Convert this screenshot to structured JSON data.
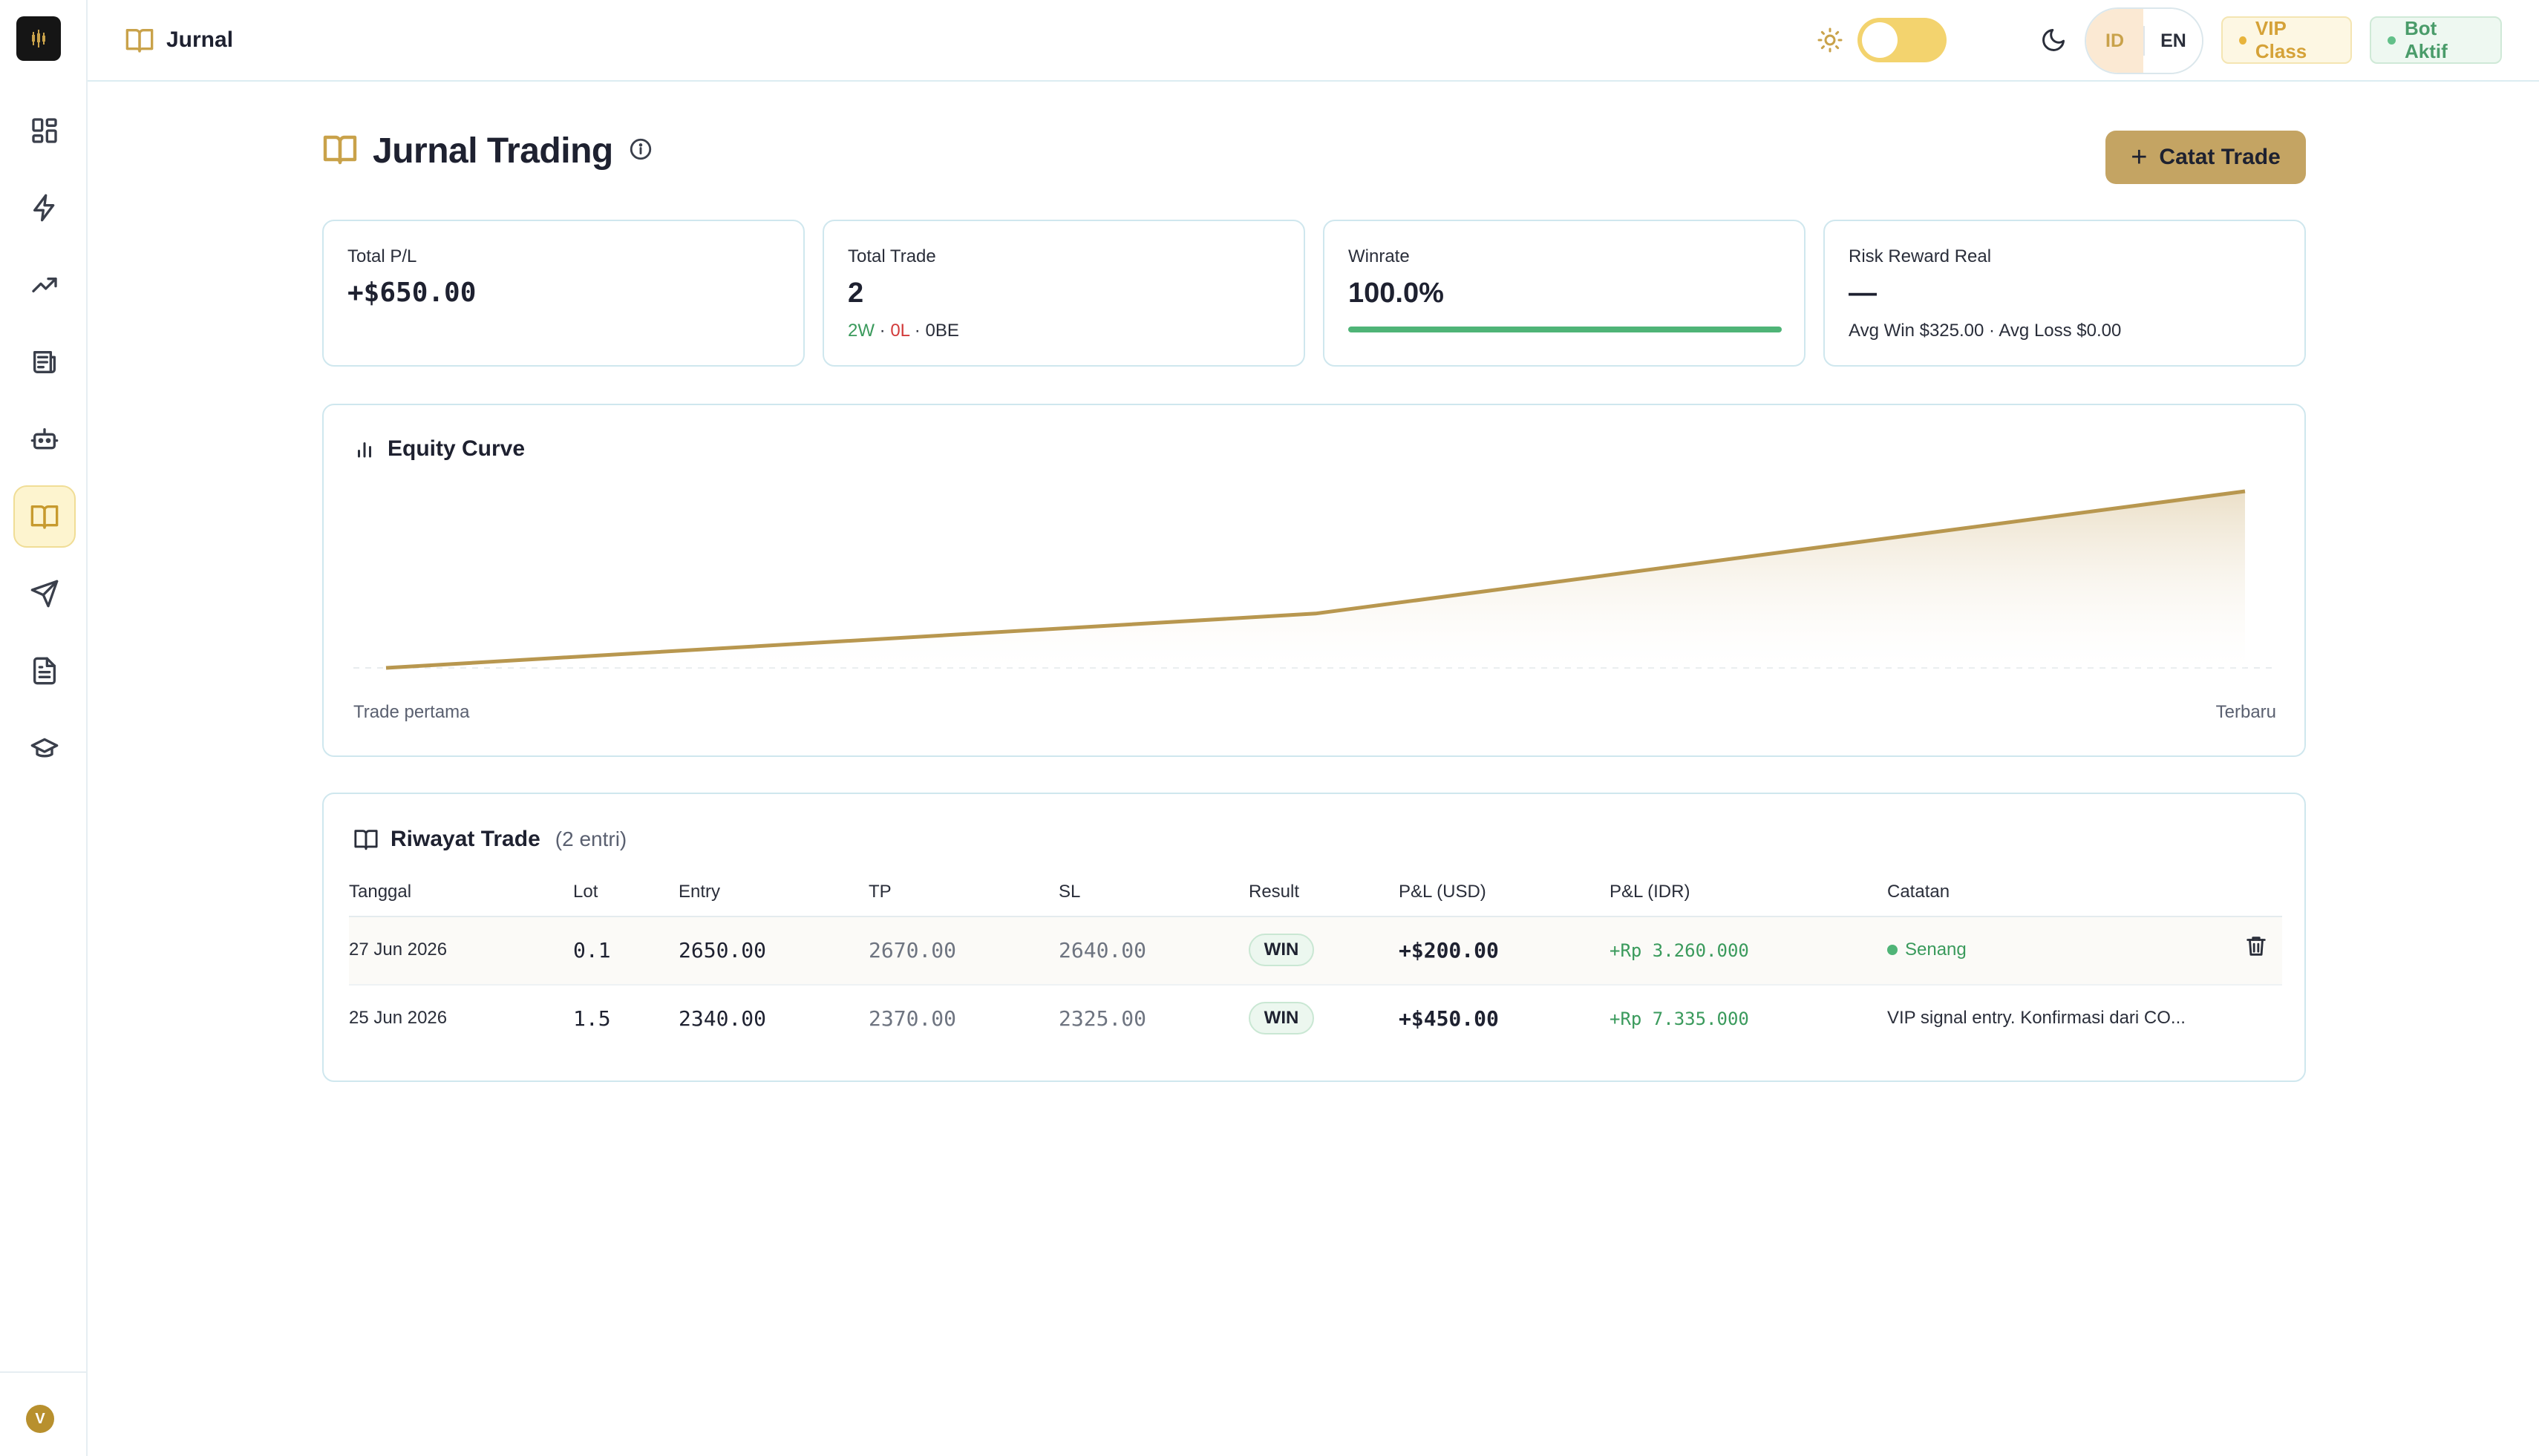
{
  "topbar": {
    "page_icon": "book-open-icon",
    "page_name": "Jurnal",
    "lang_options": [
      "ID",
      "EN"
    ],
    "lang_selected": "ID",
    "vip_label": "VIP Class",
    "bot_label": "Bot Aktif"
  },
  "sidebar": {
    "logo": "brand-logo",
    "items": [
      {
        "icon": "dashboard-grid-icon"
      },
      {
        "icon": "lightning-icon"
      },
      {
        "icon": "trending-up-icon"
      },
      {
        "icon": "newspaper-icon"
      },
      {
        "icon": "bot-icon"
      },
      {
        "icon": "book-open-icon",
        "active": true
      },
      {
        "icon": "send-icon"
      },
      {
        "icon": "document-icon"
      },
      {
        "icon": "graduation-cap-icon"
      }
    ],
    "avatar_initial": "V"
  },
  "page": {
    "title": "Jurnal Trading",
    "add_button": "Catat Trade"
  },
  "stats": {
    "total_pl": {
      "label": "Total P/L",
      "value": "+$650.00"
    },
    "total_trade": {
      "label": "Total Trade",
      "value": "2",
      "wins": "2W",
      "losses": "0L",
      "be": "0BE",
      "sep": " · "
    },
    "winrate": {
      "label": "Winrate",
      "value": "100.0%",
      "progress": 1.0
    },
    "risk_reward": {
      "label": "Risk Reward Real",
      "value": "—",
      "sub": "Avg Win $325.00 · Avg Loss $0.00"
    }
  },
  "equity": {
    "title": "Equity Curve",
    "x_start_label": "Trade pertama",
    "x_end_label": "Terbaru"
  },
  "chart_data": {
    "type": "area",
    "title": "Equity Curve",
    "x": [
      "Trade pertama",
      "",
      "Terbaru"
    ],
    "values": [
      0,
      200,
      650
    ],
    "color": "#b8974f"
  },
  "history": {
    "title": "Riwayat Trade",
    "count": "(2 entri)",
    "columns": [
      "Tanggal",
      "Lot",
      "Entry",
      "TP",
      "SL",
      "Result",
      "P&L (USD)",
      "P&L (IDR)",
      "Catatan"
    ],
    "rows": [
      {
        "date": "27 Jun 2026",
        "lot": "0.1",
        "entry": "2650.00",
        "tp": "2670.00",
        "sl": "2640.00",
        "result": "WIN",
        "pl_usd": "+$200.00",
        "pl_idr": "+Rp 3.260.000",
        "note": "Senang"
      },
      {
        "date": "25 Jun 2026",
        "lot": "1.5",
        "entry": "2340.00",
        "tp": "2370.00",
        "sl": "2325.00",
        "result": "WIN",
        "pl_usd": "+$450.00",
        "pl_idr": "+Rp 7.335.000",
        "note": "VIP signal entry. Konfirmasi dari CO..."
      }
    ]
  },
  "colors": {
    "accent": "#c4a463",
    "win_green": "#3a9a5c",
    "loss_red": "#d23b3b",
    "border": "#cfe7ee"
  }
}
